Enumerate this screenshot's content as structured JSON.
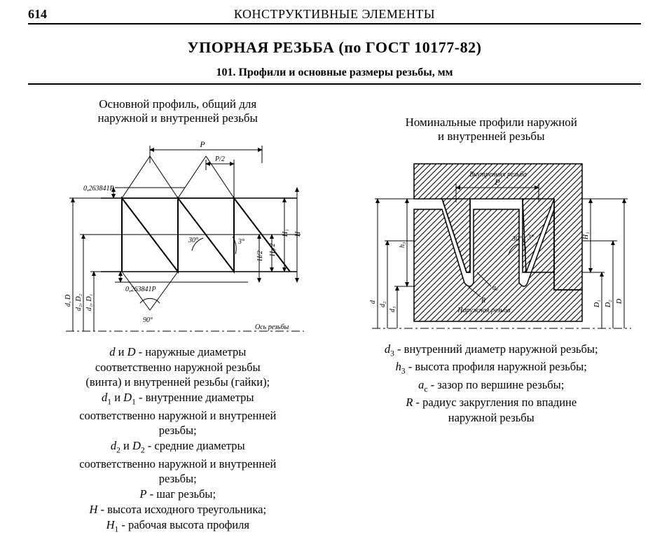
{
  "page_number": "614",
  "header_title": "КОНСТРУКТИВНЫЕ ЭЛЕМЕНТЫ",
  "main_title": "УПОРНАЯ РЕЗЬБА (по ГОСТ 10177-82)",
  "sub_title": "101. Профили и основные размеры резьбы, мм",
  "left": {
    "caption_l1": "Основной профиль, общий для",
    "caption_l2": "наружной и внутренней резьбы",
    "diagram": {
      "stroke": "#000000",
      "fill": "#ffffff",
      "angles": {
        "flank1": "30°",
        "flank2": "3°",
        "apex": "90°"
      },
      "labels": {
        "P": "P",
        "P_half": "P/2",
        "top_const": "0,263841P",
        "bot_const": "0,263841P",
        "H": "H",
        "H1": "H₁",
        "H1_half": "H₁/2",
        "H_half": "H/2",
        "axis": "Ось резьбы",
        "d_D": "d, D",
        "d2_D2": "d₂, D₂",
        "d1_D1": "d₁, D₁"
      }
    },
    "legend_html": "<span class=\"sym\">d</span> и <span class=\"sym\">D</span> - наружные диаметры<br>соответственно наружной резьбы<br>(винта) и внутренней резьбы (гайки);<br><span class=\"sym\">d</span><span class=\"sub\">1</span> и <span class=\"sym\">D</span><span class=\"sub\">1</span> - внутренние диаметры<br>соответственно наружной и внутренней<br>резьбы;<br><span class=\"sym\">d</span><span class=\"sub\">2</span> и <span class=\"sym\">D</span><span class=\"sub\">2</span> - средние диаметры<br>соответственно наружной и внутренней<br>резьбы;<br><span class=\"sym\">P</span> - шаг резьбы;<br><span class=\"sym\">H</span> - высота исходного треугольника;<br><span class=\"sym\">H</span><span class=\"sub\">1</span> - рабочая высота профиля"
  },
  "right": {
    "caption_l1": "Номинальные профили наружной",
    "caption_l2": "и внутренней резьбы",
    "diagram": {
      "stroke": "#000000",
      "hatch_spacing": 7,
      "angles": {
        "flank1": "30°",
        "flank2": "3°"
      },
      "labels": {
        "internal": "Внутренняя резьба",
        "external": "Наружная резьба",
        "P": "P",
        "ac": "aₐ",
        "R": "R",
        "h3": "h₃",
        "H1": "H₁",
        "d": "d",
        "d2": "d₂",
        "d3": "d₃",
        "D1": "D₁",
        "D2": "D₂",
        "D": "D"
      }
    },
    "legend_html": "<span class=\"sym\">d</span><span class=\"sub\">3</span> - внутренний диаметр наружной резьбы;<br><span class=\"sym\">h</span><span class=\"sub\">3</span> - высота профиля наружной резьбы;<br><span class=\"sym\">a</span><span class=\"sub\">c</span> - зазор по вершине резьбы;<br><span class=\"sym\">R</span> - радиус закругления по впадине<br>наружной резьбы"
  }
}
